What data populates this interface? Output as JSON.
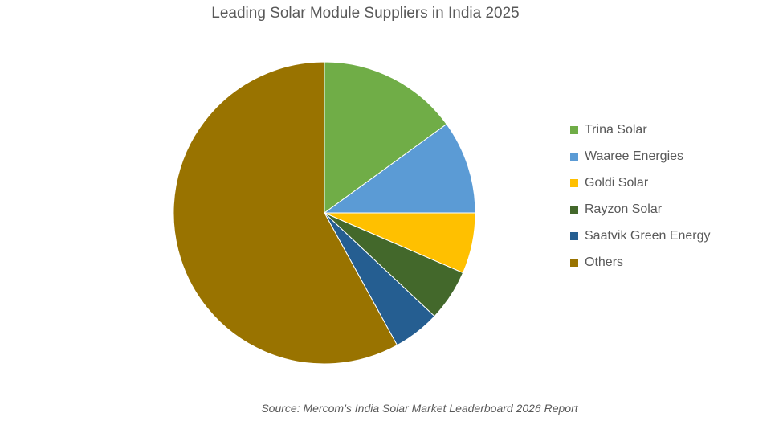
{
  "chart_data": {
    "type": "pie",
    "title": "Leading Solar Module Suppliers in India 2025",
    "slices": [
      {
        "label": "Trina Solar",
        "value": 15,
        "color": "#70ad47"
      },
      {
        "label": "Waaree Energies",
        "value": 10,
        "color": "#5b9bd5"
      },
      {
        "label": "Goldi Solar",
        "value": 6.5,
        "color": "#ffc000"
      },
      {
        "label": "Rayzon Solar",
        "value": 5.5,
        "color": "#43682b"
      },
      {
        "label": "Saatvik Green Energy",
        "value": 5,
        "color": "#255e91"
      },
      {
        "label": "Others",
        "value": 58,
        "color": "#997300"
      }
    ],
    "legend_position": "right",
    "source": "Source: Mercom’s India Solar Market Leaderboard 2026 Report"
  }
}
